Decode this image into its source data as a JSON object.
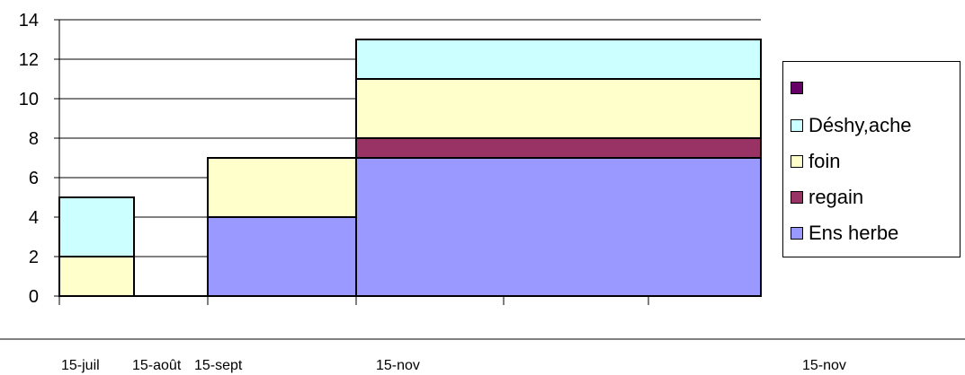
{
  "chart_data": {
    "type": "area",
    "title": "",
    "xlabel": "",
    "ylabel": "",
    "ylim": [
      0,
      14
    ],
    "yticks": [
      "0",
      "2",
      "4",
      "6",
      "8",
      "10",
      "12",
      "14"
    ],
    "x_labels": [
      "15-juil",
      "15-août",
      "15-sept",
      "15-nov",
      "15-nov"
    ],
    "intervals": [
      "15-juil – 15-août",
      "15-août – 15-sept",
      "15-sept – 15-nov",
      "15-nov – 15-nov"
    ],
    "stacking_order": [
      "Ens herbe",
      "regain",
      "foin",
      "Déshy,ache",
      ""
    ],
    "series": [
      {
        "name": "Ens herbe",
        "color": "#9999ff",
        "values": [
          0,
          0,
          4,
          7
        ]
      },
      {
        "name": "regain",
        "color": "#993366",
        "values": [
          0,
          0,
          0,
          1
        ]
      },
      {
        "name": "foin",
        "color": "#ffffcc",
        "values": [
          2,
          0,
          3,
          3
        ]
      },
      {
        "name": "Déshy,ache",
        "color": "#ccffff",
        "values": [
          3,
          0,
          0,
          2
        ]
      },
      {
        "name": "",
        "color": "#660066",
        "values": [
          0,
          0,
          0,
          0
        ]
      }
    ],
    "legend": {
      "position": "right",
      "items": [
        {
          "name": "",
          "color": "#660066"
        },
        {
          "name": "Déshy,ache",
          "color": "#ccffff"
        },
        {
          "name": "foin",
          "color": "#ffffcc"
        },
        {
          "name": "regain",
          "color": "#993366"
        },
        {
          "name": "Ens herbe",
          "color": "#9999ff"
        }
      ]
    },
    "grid": true
  }
}
